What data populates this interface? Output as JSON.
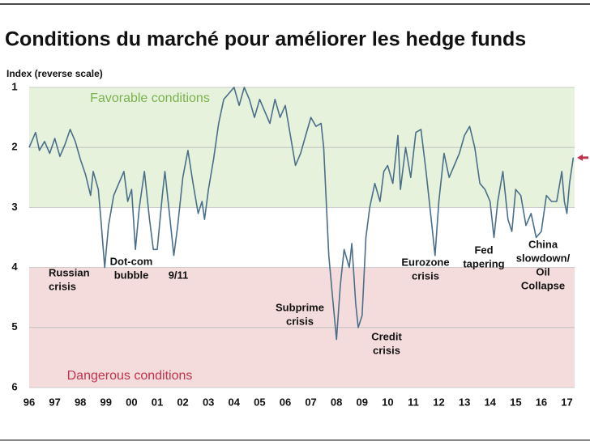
{
  "chart_data": {
    "type": "line",
    "title": "Conditions du marché pour améliorer les hedge funds",
    "y_label": "Index (reverse scale)",
    "reverse_y": true,
    "grid": true,
    "ylim": [
      1,
      6
    ],
    "yticks": [
      1,
      2,
      3,
      4,
      5,
      6
    ],
    "xlim": [
      1996,
      2017.3
    ],
    "xticks": [
      {
        "value": 1996,
        "label": "96"
      },
      {
        "value": 1997,
        "label": "97"
      },
      {
        "value": 1998,
        "label": "98"
      },
      {
        "value": 1999,
        "label": "99"
      },
      {
        "value": 2000,
        "label": "00"
      },
      {
        "value": 2001,
        "label": "01"
      },
      {
        "value": 2002,
        "label": "02"
      },
      {
        "value": 2003,
        "label": "03"
      },
      {
        "value": 2004,
        "label": "04"
      },
      {
        "value": 2005,
        "label": "05"
      },
      {
        "value": 2006,
        "label": "06"
      },
      {
        "value": 2007,
        "label": "07"
      },
      {
        "value": 2008,
        "label": "08"
      },
      {
        "value": 2009,
        "label": "09"
      },
      {
        "value": 2010,
        "label": "10"
      },
      {
        "value": 2011,
        "label": "11"
      },
      {
        "value": 2012,
        "label": "12"
      },
      {
        "value": 2013,
        "label": "13"
      },
      {
        "value": 2014,
        "label": "14"
      },
      {
        "value": 2015,
        "label": "15"
      },
      {
        "value": 2016,
        "label": "16"
      },
      {
        "value": 2017,
        "label": "17"
      }
    ],
    "bands": [
      {
        "label": "Favorable conditions",
        "range": [
          1,
          3
        ],
        "color": "#e6f2dc",
        "label_color": "#7ab24e"
      },
      {
        "label": "Dangerous conditions",
        "range": [
          4,
          6
        ],
        "color": "#f5dcdc",
        "label_color": "#c0334d"
      }
    ],
    "series": [
      {
        "color": "#4a6f8a",
        "x": [
          1996.0,
          1996.25,
          1996.4,
          1996.6,
          1996.8,
          1997.0,
          1997.2,
          1997.4,
          1997.6,
          1997.8,
          1998.0,
          1998.2,
          1998.4,
          1998.5,
          1998.7,
          1998.8,
          1998.95,
          1999.1,
          1999.3,
          1999.5,
          1999.7,
          1999.85,
          2000.0,
          2000.15,
          2000.3,
          2000.5,
          2000.7,
          2000.85,
          2001.0,
          2001.2,
          2001.3,
          2001.5,
          2001.65,
          2001.8,
          2002.0,
          2002.2,
          2002.4,
          2002.6,
          2002.75,
          2002.85,
          2003.0,
          2003.2,
          2003.4,
          2003.6,
          2003.8,
          2004.0,
          2004.2,
          2004.4,
          2004.6,
          2004.8,
          2005.0,
          2005.2,
          2005.4,
          2005.6,
          2005.8,
          2006.0,
          2006.2,
          2006.4,
          2006.6,
          2006.8,
          2007.0,
          2007.2,
          2007.4,
          2007.5,
          2007.7,
          2007.85,
          2008.0,
          2008.15,
          2008.3,
          2008.5,
          2008.6,
          2008.75,
          2008.85,
          2009.0,
          2009.15,
          2009.3,
          2009.5,
          2009.7,
          2009.85,
          2010.0,
          2010.2,
          2010.4,
          2010.5,
          2010.7,
          2010.9,
          2011.1,
          2011.3,
          2011.5,
          2011.7,
          2011.85,
          2012.0,
          2012.2,
          2012.4,
          2012.6,
          2012.8,
          2013.0,
          2013.2,
          2013.4,
          2013.6,
          2013.8,
          2014.0,
          2014.15,
          2014.3,
          2014.5,
          2014.7,
          2014.85,
          2015.0,
          2015.2,
          2015.4,
          2015.6,
          2015.8,
          2016.0,
          2016.2,
          2016.4,
          2016.6,
          2016.8,
          2016.9,
          2017.0,
          2017.1,
          2017.25
        ],
        "values": [
          2.0,
          1.75,
          2.05,
          1.9,
          2.1,
          1.85,
          2.15,
          1.95,
          1.7,
          1.9,
          2.2,
          2.45,
          2.8,
          2.4,
          2.7,
          3.2,
          4.0,
          3.3,
          2.8,
          2.6,
          2.4,
          2.9,
          2.7,
          3.7,
          3.0,
          2.4,
          3.2,
          3.7,
          3.7,
          2.8,
          2.4,
          3.2,
          3.8,
          3.3,
          2.5,
          2.05,
          2.6,
          3.1,
          2.9,
          3.2,
          2.7,
          2.2,
          1.6,
          1.2,
          1.1,
          1.0,
          1.3,
          1.0,
          1.2,
          1.5,
          1.2,
          1.4,
          1.6,
          1.2,
          1.5,
          1.3,
          1.8,
          2.3,
          2.1,
          1.8,
          1.5,
          1.65,
          1.6,
          2.0,
          3.8,
          4.5,
          5.2,
          4.3,
          3.7,
          4.0,
          3.6,
          4.6,
          5.0,
          4.8,
          3.5,
          3.0,
          2.6,
          2.9,
          2.4,
          2.3,
          2.6,
          1.8,
          2.7,
          2.0,
          2.5,
          1.75,
          1.7,
          2.4,
          3.2,
          3.8,
          2.9,
          2.1,
          2.5,
          2.3,
          2.1,
          1.8,
          1.65,
          2.0,
          2.6,
          2.7,
          2.9,
          3.5,
          2.9,
          2.4,
          3.2,
          3.4,
          2.7,
          2.8,
          3.3,
          3.1,
          3.5,
          3.4,
          2.8,
          2.9,
          2.9,
          2.4,
          2.9,
          3.1,
          2.6,
          2.17
        ]
      }
    ],
    "latest_marker": {
      "value": 2.17,
      "color": "#c0334d"
    },
    "annotations": [
      {
        "lines": [
          "Russian",
          "crisis"
        ]
      },
      {
        "lines": [
          "Dot-com",
          "bubble"
        ]
      },
      {
        "lines": [
          "9/11"
        ]
      },
      {
        "lines": [
          "Subprime",
          "crisis"
        ]
      },
      {
        "lines": [
          "Credit",
          "crisis"
        ]
      },
      {
        "lines": [
          "Eurozone",
          "crisis"
        ]
      },
      {
        "lines": [
          "Fed",
          "tapering"
        ]
      },
      {
        "lines": [
          "China",
          "slowdown/",
          "Oil",
          "Collapse"
        ]
      }
    ]
  }
}
